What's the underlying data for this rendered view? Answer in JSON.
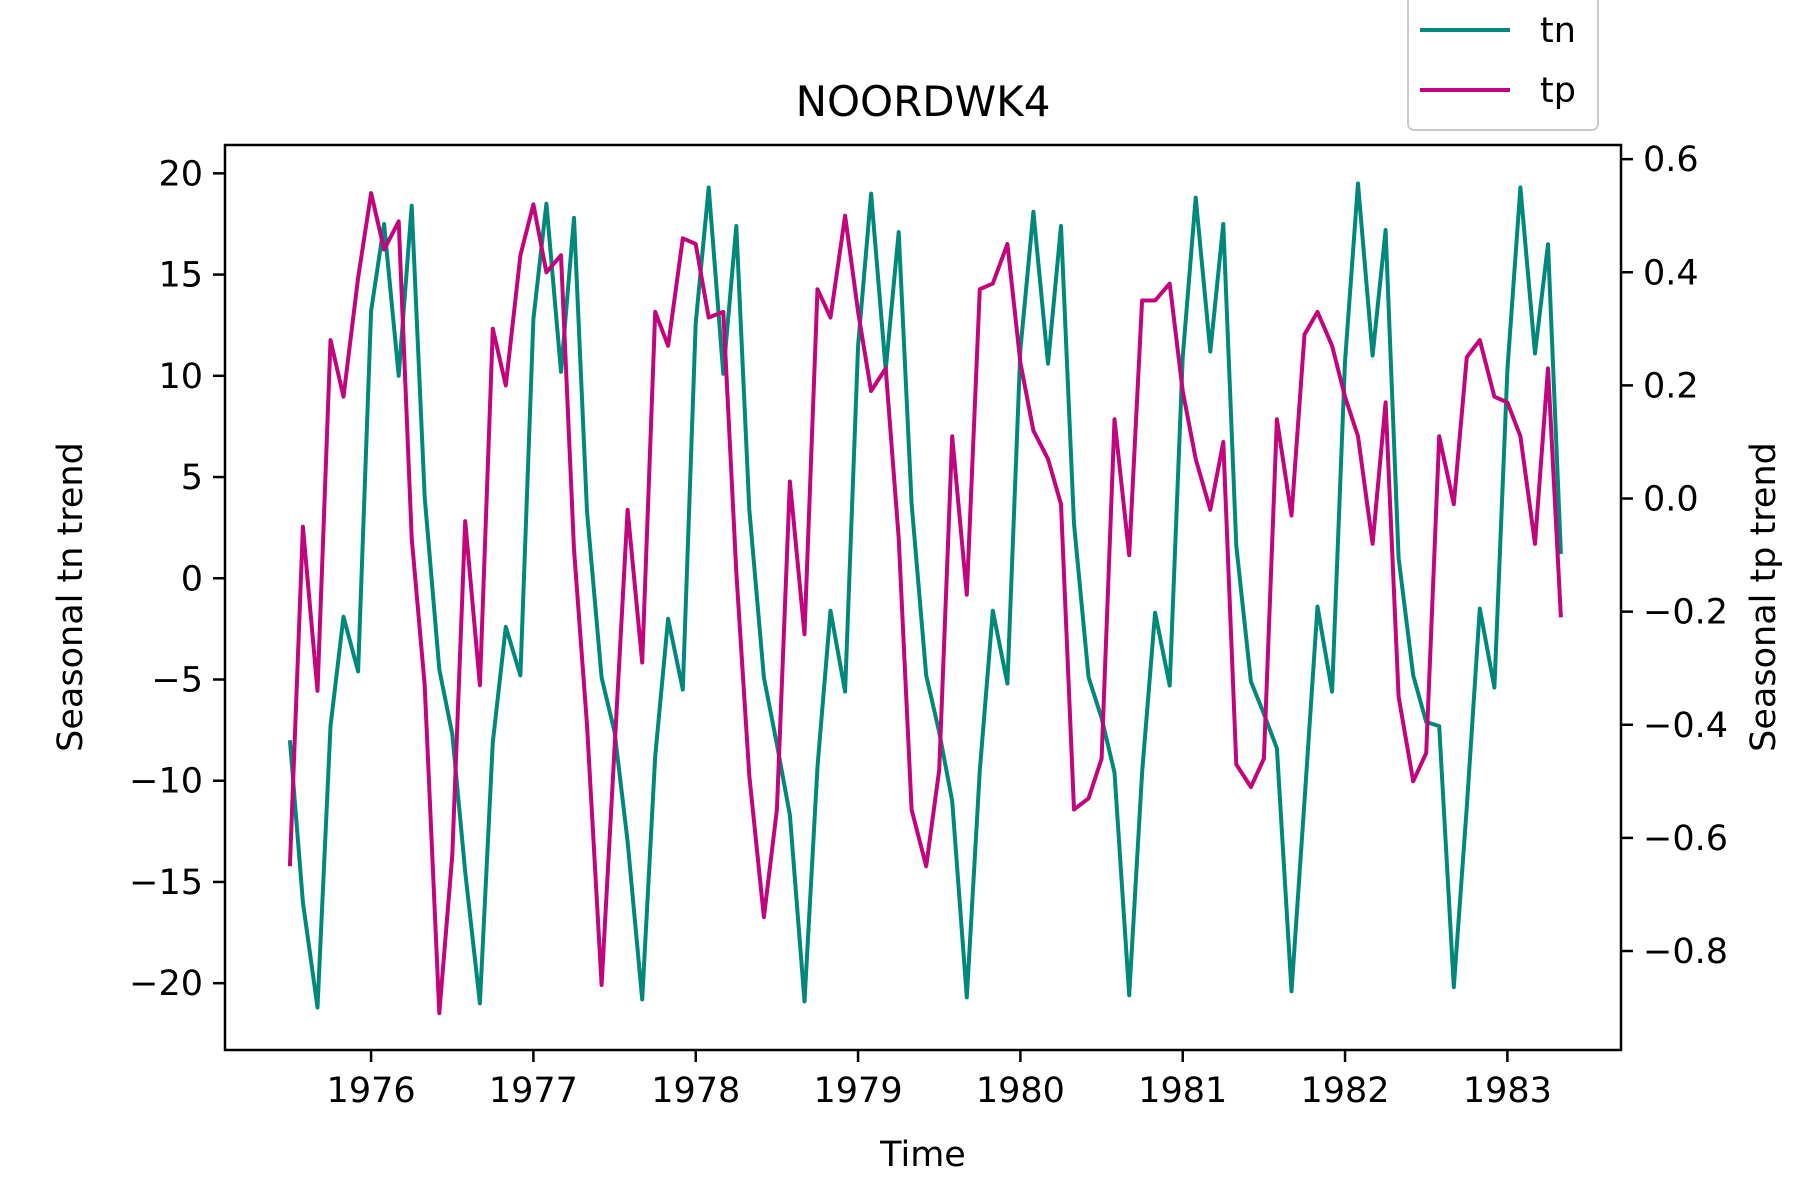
{
  "chart_data": {
    "type": "line",
    "title": "NOORDWK4",
    "xlabel": "Time",
    "ylabel_left": "Seasonal tn trend",
    "ylabel_right": "Seasonal tp trend",
    "x_ticks": [
      1976,
      1977,
      1978,
      1979,
      1980,
      1981,
      1982,
      1983
    ],
    "x_ticks_label": [
      "1976",
      "1977",
      "1978",
      "1979",
      "1980",
      "1981",
      "1982",
      "1983"
    ],
    "xlim": [
      1975.1,
      1983.7
    ],
    "ylim_left": [
      -23.3,
      21.4
    ],
    "ylim_right": [
      -0.975,
      0.625
    ],
    "y_ticks_left": [
      20,
      15,
      10,
      5,
      0,
      -5,
      -10,
      -15,
      -20
    ],
    "y_ticks_left_label": [
      "20",
      "15",
      "10",
      "5",
      "0",
      "−5",
      "−10",
      "−15",
      "−20"
    ],
    "y_ticks_right": [
      0.6,
      0.4,
      0.2,
      0.0,
      -0.2,
      -0.4,
      -0.6,
      -0.8
    ],
    "y_ticks_right_label": [
      "0.6",
      "0.4",
      "0.2",
      "0.0",
      "−0.2",
      "−0.4",
      "−0.6",
      "−0.8"
    ],
    "legend_position": "top-right",
    "grid": false,
    "series": [
      {
        "name": "tn",
        "axis": "left",
        "color": "#00897b",
        "x": [
          1975.5,
          1975.58,
          1975.67,
          1975.75,
          1975.83,
          1975.92,
          1976.0,
          1976.08,
          1976.17,
          1976.25,
          1976.33,
          1976.42,
          1976.5,
          1976.58,
          1976.67,
          1976.75,
          1976.83,
          1976.92,
          1977.0,
          1977.08,
          1977.17,
          1977.25,
          1977.33,
          1977.42,
          1977.5,
          1977.58,
          1977.67,
          1977.75,
          1977.83,
          1977.92,
          1978.0,
          1978.08,
          1978.17,
          1978.25,
          1978.33,
          1978.42,
          1978.5,
          1978.58,
          1978.67,
          1978.75,
          1978.83,
          1978.92,
          1979.0,
          1979.08,
          1979.17,
          1979.25,
          1979.33,
          1979.42,
          1979.5,
          1979.58,
          1979.67,
          1979.75,
          1979.83,
          1979.92,
          1980.0,
          1980.08,
          1980.17,
          1980.25,
          1980.33,
          1980.42,
          1980.5,
          1980.58,
          1980.67,
          1980.75,
          1980.83,
          1980.92,
          1981.0,
          1981.08,
          1981.17,
          1981.25,
          1981.33,
          1981.42,
          1981.5,
          1981.58,
          1981.67,
          1981.75,
          1981.83,
          1981.92,
          1982.0,
          1982.08,
          1982.17,
          1982.25,
          1982.33,
          1982.42,
          1982.5,
          1982.58,
          1982.67,
          1982.75,
          1982.83,
          1982.92,
          1983.0,
          1983.08,
          1983.17,
          1983.25,
          1983.33
        ],
        "values": [
          -8.0,
          -16.0,
          -21.2,
          -7.3,
          -1.9,
          -4.6,
          13.2,
          17.5,
          10.0,
          18.4,
          4.0,
          -4.5,
          -7.7,
          -14.5,
          -21.0,
          -8.1,
          -2.4,
          -4.8,
          12.8,
          18.5,
          10.2,
          17.8,
          3.3,
          -4.9,
          -7.6,
          -13.0,
          -20.8,
          -8.8,
          -2.0,
          -5.5,
          12.6,
          19.3,
          10.1,
          17.4,
          3.4,
          -4.9,
          -8.2,
          -11.7,
          -20.9,
          -9.3,
          -1.6,
          -5.6,
          11.5,
          19.0,
          10.3,
          17.1,
          3.7,
          -4.8,
          -7.6,
          -11.0,
          -20.7,
          -9.5,
          -1.6,
          -5.2,
          11.3,
          18.1,
          10.6,
          17.4,
          2.7,
          -4.9,
          -6.9,
          -9.6,
          -20.6,
          -9.6,
          -1.7,
          -5.3,
          10.9,
          18.8,
          11.2,
          17.5,
          1.6,
          -5.1,
          -6.7,
          -8.4,
          -20.4,
          -11.0,
          -1.4,
          -5.6,
          10.7,
          19.5,
          11.0,
          17.2,
          1.0,
          -4.8,
          -7.1,
          -7.3,
          -20.2,
          -11.3,
          -1.5,
          -5.4,
          10.3,
          19.3,
          11.1,
          16.5,
          1.2
        ]
      },
      {
        "name": "tp",
        "axis": "right",
        "color": "#c2047d",
        "x": [
          1975.5,
          1975.58,
          1975.67,
          1975.75,
          1975.83,
          1975.92,
          1976.0,
          1976.08,
          1976.17,
          1976.25,
          1976.33,
          1976.42,
          1976.5,
          1976.58,
          1976.67,
          1976.75,
          1976.83,
          1976.92,
          1977.0,
          1977.08,
          1977.17,
          1977.25,
          1977.33,
          1977.42,
          1977.5,
          1977.58,
          1977.67,
          1977.75,
          1977.83,
          1977.92,
          1978.0,
          1978.08,
          1978.17,
          1978.25,
          1978.33,
          1978.42,
          1978.5,
          1978.58,
          1978.67,
          1978.75,
          1978.83,
          1978.92,
          1979.0,
          1979.08,
          1979.17,
          1979.25,
          1979.33,
          1979.42,
          1979.5,
          1979.58,
          1979.67,
          1979.75,
          1979.83,
          1979.92,
          1980.0,
          1980.08,
          1980.17,
          1980.25,
          1980.33,
          1980.42,
          1980.5,
          1980.58,
          1980.67,
          1980.75,
          1980.83,
          1980.92,
          1981.0,
          1981.08,
          1981.17,
          1981.25,
          1981.33,
          1981.42,
          1981.5,
          1981.58,
          1981.67,
          1981.75,
          1981.83,
          1981.92,
          1982.0,
          1982.08,
          1982.17,
          1982.25,
          1982.33,
          1982.42,
          1982.5,
          1982.58,
          1982.67,
          1982.75,
          1982.83,
          1982.92,
          1983.0,
          1983.08,
          1983.17,
          1983.25,
          1983.33
        ],
        "values": [
          -0.65,
          -0.05,
          -0.34,
          0.28,
          0.18,
          0.39,
          0.54,
          0.44,
          0.49,
          -0.07,
          -0.33,
          -0.91,
          -0.63,
          -0.04,
          -0.33,
          0.3,
          0.2,
          0.43,
          0.52,
          0.4,
          0.43,
          -0.09,
          -0.4,
          -0.86,
          -0.44,
          -0.02,
          -0.29,
          0.33,
          0.27,
          0.46,
          0.45,
          0.32,
          0.33,
          -0.13,
          -0.49,
          -0.74,
          -0.55,
          0.03,
          -0.24,
          0.37,
          0.32,
          0.5,
          0.33,
          0.19,
          0.23,
          -0.07,
          -0.55,
          -0.65,
          -0.48,
          0.11,
          -0.17,
          0.37,
          0.38,
          0.45,
          0.24,
          0.12,
          0.07,
          -0.01,
          -0.55,
          -0.53,
          -0.46,
          0.14,
          -0.1,
          0.35,
          0.35,
          0.38,
          0.19,
          0.07,
          -0.02,
          0.1,
          -0.47,
          -0.51,
          -0.46,
          0.14,
          -0.03,
          0.29,
          0.33,
          0.27,
          0.18,
          0.11,
          -0.08,
          0.17,
          -0.35,
          -0.5,
          -0.45,
          0.11,
          -0.01,
          0.25,
          0.28,
          0.18,
          0.17,
          0.11,
          -0.08,
          0.23,
          -0.21
        ]
      }
    ]
  }
}
